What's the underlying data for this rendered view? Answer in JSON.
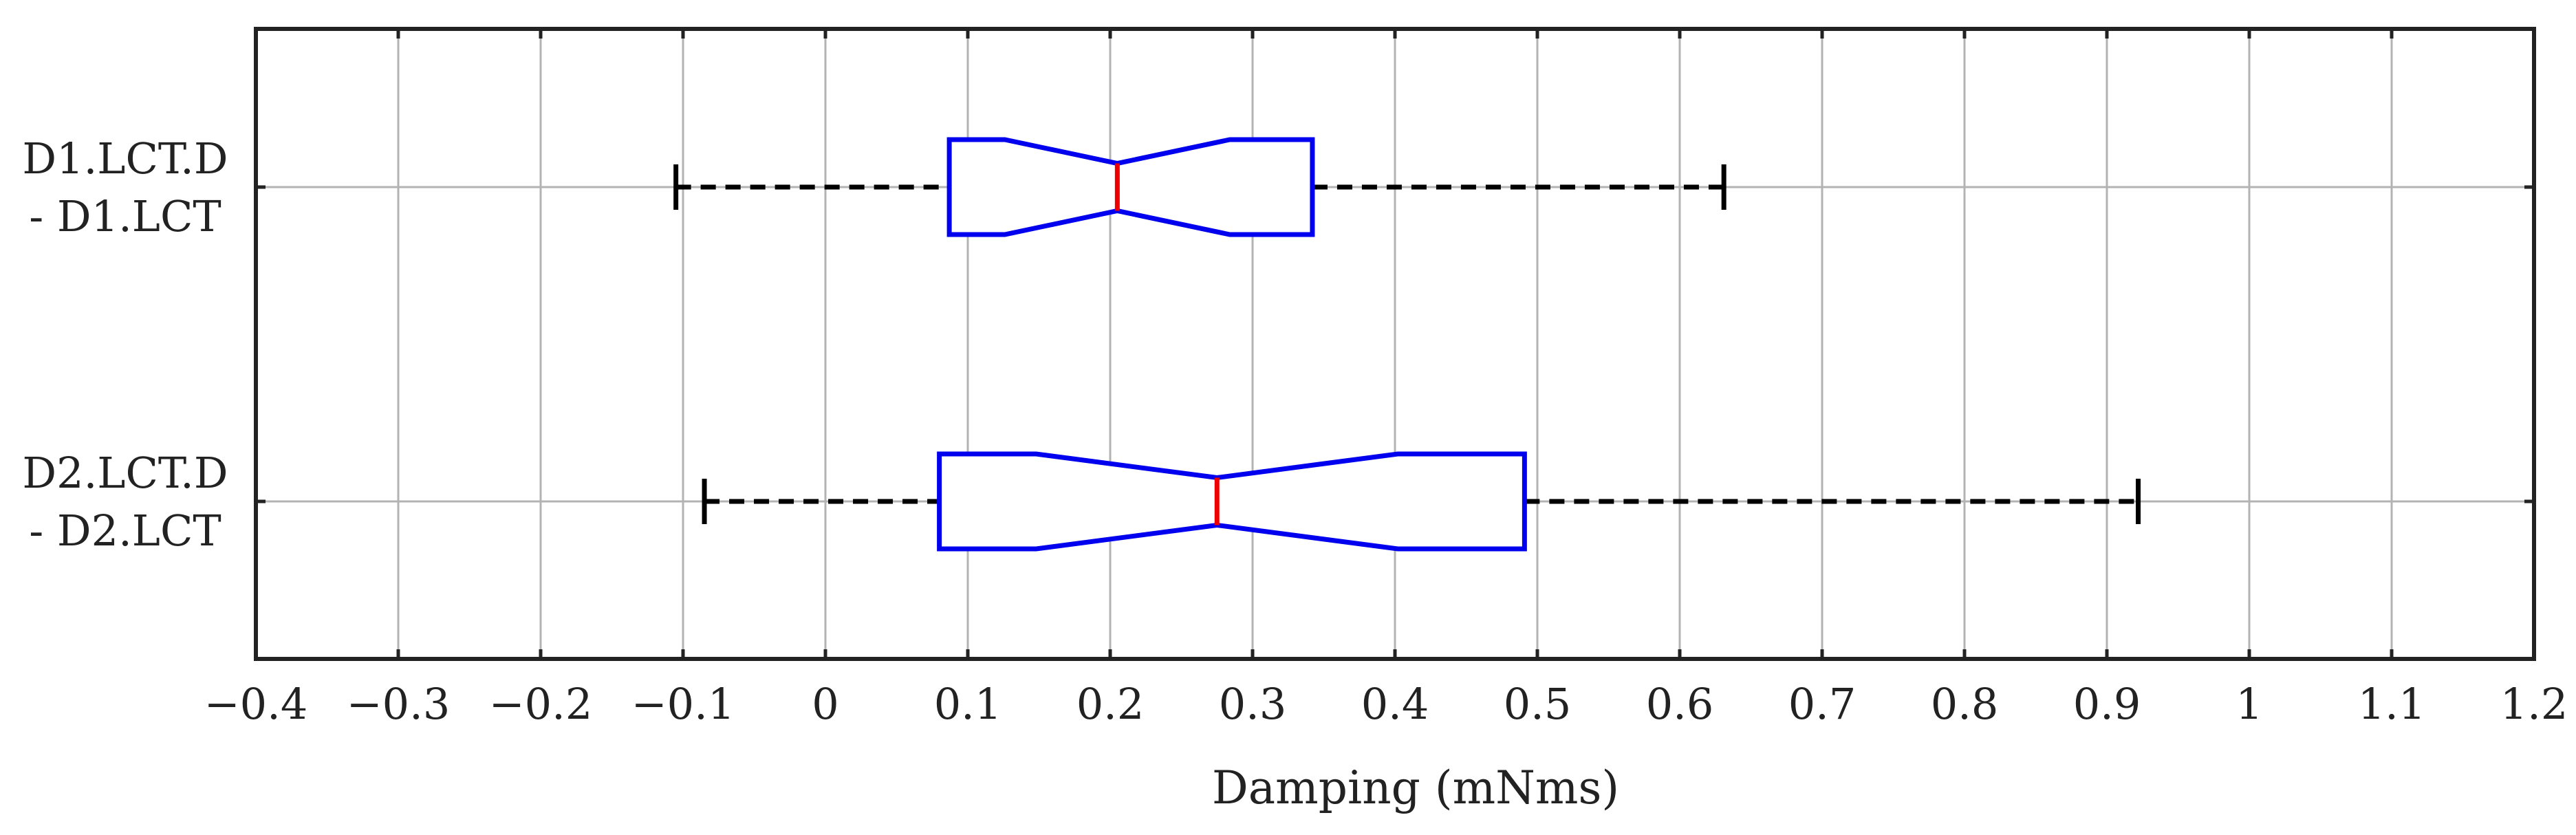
{
  "chart_data": {
    "type": "boxplot",
    "orientation": "horizontal",
    "xlabel": "Damping (mNms)",
    "ylabel": "",
    "xlim": [
      -0.4,
      1.2
    ],
    "xticks": [
      -0.4,
      -0.3,
      -0.2,
      -0.1,
      0,
      0.1,
      0.2,
      0.3,
      0.4,
      0.5,
      0.6,
      0.7,
      0.8,
      0.9,
      1,
      1.1,
      1.2
    ],
    "xtick_labels": [
      "−0.4",
      "−0.3",
      "−0.2",
      "−0.1",
      "0",
      "0.1",
      "0.2",
      "0.3",
      "0.4",
      "0.5",
      "0.6",
      "0.7",
      "0.8",
      "0.9",
      "1",
      "1.1",
      "1.2"
    ],
    "grid": true,
    "notched": true,
    "categories": [
      {
        "label_lines": [
          "D1.LCT.D",
          "- D1.LCT"
        ],
        "whisker_low": -0.105,
        "q1": 0.087,
        "notch_low": 0.126,
        "median": 0.205,
        "notch_high": 0.284,
        "q3": 0.342,
        "whisker_high": 0.631
      },
      {
        "label_lines": [
          "D2.LCT.D",
          "- D2.LCT"
        ],
        "whisker_low": -0.085,
        "q1": 0.08,
        "notch_low": 0.148,
        "median": 0.275,
        "notch_high": 0.402,
        "q3": 0.491,
        "whisker_high": 0.922
      }
    ],
    "colors": {
      "box": "#0000ee",
      "median": "#ee0000",
      "whisker": "#000000",
      "grid": "#b3b3b3",
      "frame": "#222222"
    }
  }
}
